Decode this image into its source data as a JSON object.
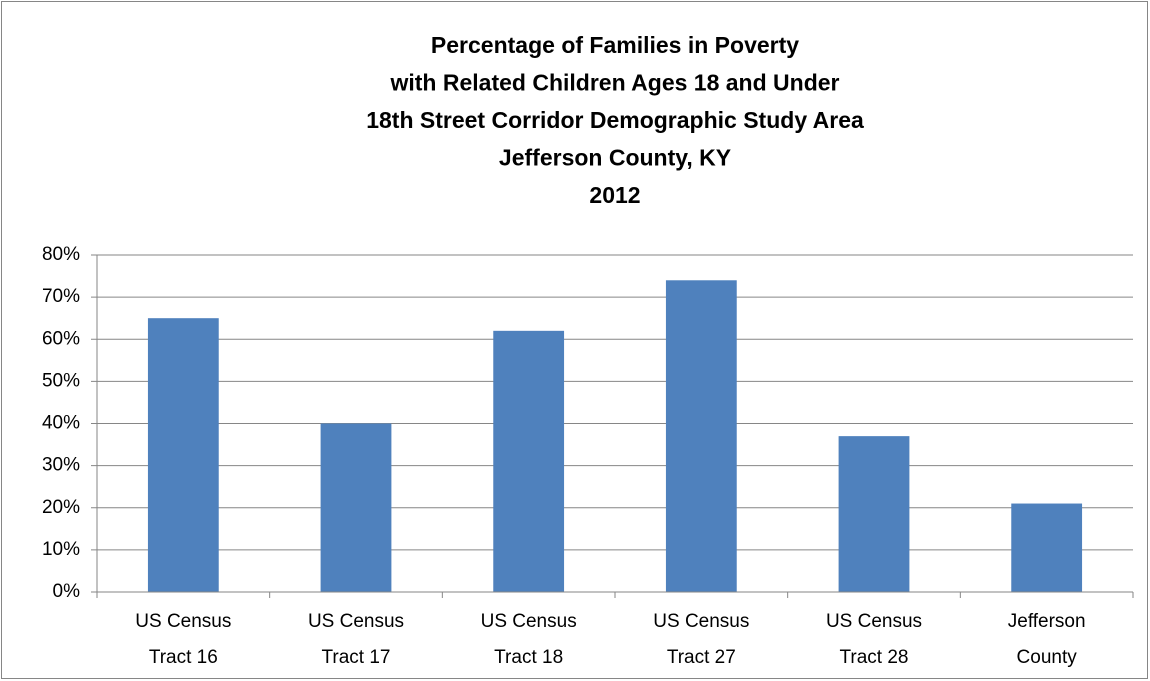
{
  "chart_data": {
    "type": "bar",
    "title": [
      "Percentage of Families in Poverty",
      "with Related Children Ages 18 and Under",
      "18th Street Corridor Demographic Study Area",
      "Jefferson County, KY",
      "2012"
    ],
    "categories": [
      "US Census Tract 16",
      "US Census Tract 17",
      "US Census Tract 18",
      "US Census Tract 27",
      "US Census Tract 28",
      "Jefferson County"
    ],
    "values": [
      65,
      40,
      62,
      74,
      37,
      21
    ],
    "color": "#4f81bd",
    "ylim": [
      0,
      80
    ],
    "yticks": [
      {
        "value": 0,
        "label": "0%"
      },
      {
        "value": 10,
        "label": "10%"
      },
      {
        "value": 20,
        "label": "20%"
      },
      {
        "value": 30,
        "label": "30%"
      },
      {
        "value": 40,
        "label": "40%"
      },
      {
        "value": 50,
        "label": "50%"
      },
      {
        "value": 60,
        "label": "60%"
      },
      {
        "value": 70,
        "label": "70%"
      },
      {
        "value": 80,
        "label": "80%"
      }
    ],
    "grid": true
  }
}
